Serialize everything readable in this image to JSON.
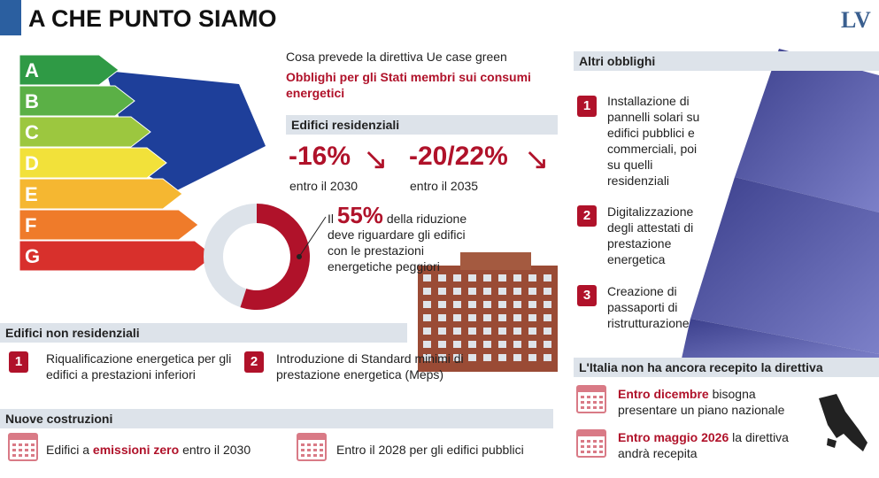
{
  "header": {
    "title": "A CHE PUNTO SIAMO",
    "logo": "LV"
  },
  "intro": {
    "subtitle": "Cosa prevede la direttiva Ue case green",
    "heading": "Obblighi per gli Stati membri sui consumi energetici"
  },
  "energy_classes": [
    "A",
    "B",
    "C",
    "D",
    "E",
    "F",
    "G"
  ],
  "residential": {
    "title": "Edifici residenziali",
    "targets": [
      {
        "value": "-16%",
        "label": "entro il 2030"
      },
      {
        "value": "-20/22%",
        "label": "entro il 2035"
      }
    ],
    "share": {
      "prefix": "Il",
      "value": 55,
      "value_label": "55%",
      "text": "della riduzione deve riguardare gli edifici con le prestazioni energetiche peggiori"
    }
  },
  "non_residential": {
    "title": "Edifici non residenziali",
    "items": [
      {
        "number": 1,
        "text": "Riqualificazione energetica per gli edifici a prestazioni inferiori"
      },
      {
        "number": 2,
        "text": "Introduzione di Standard minimi di prestazione energetica (Meps)"
      }
    ]
  },
  "new_buildings": {
    "title": "Nuove costruzioni",
    "items": [
      {
        "before": "Edifici a",
        "highlight": "emissioni zero",
        "after": "entro il 2030"
      },
      {
        "text": "Entro il 2028 per gli edifici pubblici"
      }
    ]
  },
  "other_obligations": {
    "title": "Altri obblighi",
    "items": [
      {
        "number": 1,
        "text": "Installazione di pannelli solari su edifici pubblici e commerciali, poi su quelli residenziali"
      },
      {
        "number": 2,
        "text": "Digitalizzazione degli attestati di prestazione energetica"
      },
      {
        "number": 3,
        "text": "Creazione di passaporti di ristrutturazione"
      }
    ]
  },
  "italy": {
    "title": "L'Italia non ha ancora recepito la direttiva",
    "items": [
      {
        "highlight": "Entro dicembre",
        "text": "bisogna presentare un piano nazionale"
      },
      {
        "highlight": "Entro maggio 2026",
        "text": "la direttiva andrà recepita"
      }
    ]
  }
}
